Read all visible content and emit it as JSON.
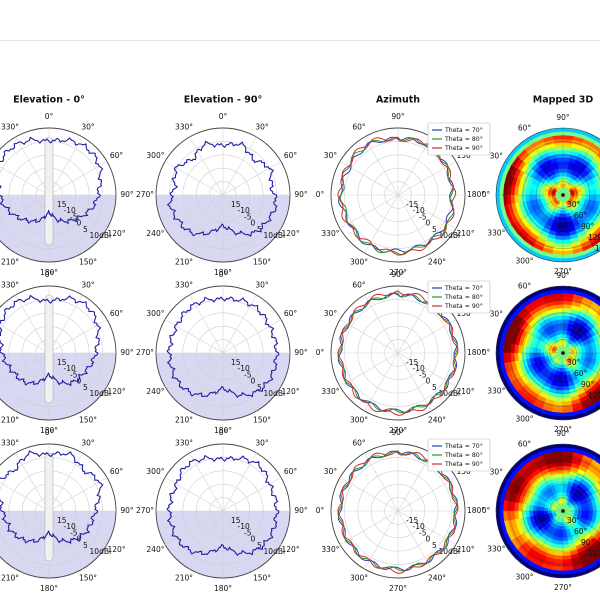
{
  "figure": {
    "column_titles": [
      "Elevation - 0°",
      "Elevation - 90°",
      "Azimuth",
      "Mapped 3D"
    ]
  },
  "colors": {
    "pattern_line": "#1f1fa3",
    "lower_half_shade": "#d8d8f3",
    "theta70": "#1f3fbf",
    "theta80": "#2a9a2a",
    "theta90": "#d42a2a"
  },
  "chart_data": [
    {
      "type": "polar-line",
      "panel": "elevation-0",
      "title": "Elevation - 0°",
      "angular_ticks": [
        "0°",
        "330°",
        "300°",
        "270°",
        "240°",
        "210°",
        "180°",
        "150°",
        "120°",
        "90°",
        "60°",
        "30°"
      ],
      "radial_ticks": [
        "15",
        "-10",
        "-5",
        "0",
        "5",
        "10dBi"
      ],
      "rlim": [
        -20,
        10
      ],
      "rows": [
        {
          "angles": [
            0,
            20,
            40,
            60,
            80,
            100,
            120,
            140,
            160,
            180,
            200,
            220,
            240,
            260,
            280,
            300,
            320,
            340
          ],
          "gain": [
            4,
            6,
            7,
            6,
            3,
            1,
            -2,
            -5,
            -8,
            -12,
            -8,
            -5,
            -2,
            1,
            3,
            6,
            7,
            6
          ]
        },
        {
          "angles": [
            0,
            20,
            40,
            60,
            80,
            100,
            120,
            140,
            160,
            180,
            200,
            220,
            240,
            260,
            280,
            300,
            320,
            340
          ],
          "gain": [
            3,
            6,
            7,
            5,
            2,
            0,
            -2,
            -3,
            -6,
            -10,
            -6,
            -3,
            -2,
            0,
            2,
            5,
            7,
            6
          ]
        },
        {
          "angles": [
            0,
            20,
            40,
            60,
            80,
            100,
            120,
            140,
            160,
            180,
            200,
            220,
            240,
            260,
            280,
            300,
            320,
            340
          ],
          "gain": [
            5,
            7,
            4,
            6,
            2,
            0,
            -1,
            -3,
            -6,
            -10,
            -6,
            -3,
            -1,
            0,
            2,
            6,
            4,
            7
          ]
        }
      ]
    },
    {
      "type": "polar-line",
      "panel": "elevation-90",
      "title": "Elevation - 90°",
      "angular_ticks": [
        "0°",
        "330°",
        "300°",
        "270°",
        "240°",
        "210°",
        "180°",
        "150°",
        "120°",
        "90°",
        "60°",
        "30°"
      ],
      "radial_ticks": [
        "15",
        "-10",
        "-5",
        "0",
        "5",
        "10dBi"
      ],
      "rlim": [
        -20,
        10
      ],
      "rows": [
        {
          "angles": [
            0,
            20,
            40,
            60,
            80,
            100,
            120,
            140,
            160,
            180,
            200,
            220,
            240,
            260,
            280,
            300,
            320,
            340
          ],
          "gain": [
            2,
            4,
            1,
            4,
            2,
            4,
            3,
            2,
            -2,
            -6,
            -2,
            2,
            3,
            4,
            2,
            4,
            1,
            4
          ]
        },
        {
          "angles": [
            0,
            20,
            40,
            60,
            80,
            100,
            120,
            140,
            160,
            180,
            200,
            220,
            240,
            260,
            280,
            300,
            320,
            340
          ],
          "gain": [
            4,
            5,
            5,
            4,
            4,
            4,
            4,
            3,
            0,
            -4,
            0,
            3,
            4,
            4,
            4,
            4,
            5,
            5
          ]
        },
        {
          "angles": [
            0,
            20,
            40,
            60,
            80,
            100,
            120,
            140,
            160,
            180,
            200,
            220,
            240,
            260,
            280,
            300,
            320,
            340
          ],
          "gain": [
            3,
            5,
            6,
            4,
            4,
            4,
            4,
            3,
            0,
            -4,
            0,
            3,
            4,
            4,
            4,
            4,
            6,
            5
          ]
        }
      ]
    },
    {
      "type": "polar-line",
      "panel": "azimuth",
      "title": "Azimuth",
      "angular_ticks": [
        "90°",
        "60°",
        "30°",
        "0°",
        "330°",
        "300°",
        "270°",
        "240°",
        "210°",
        "180°",
        "150°",
        "120°"
      ],
      "radial_ticks": [
        "-15",
        "-10",
        "-5",
        "0",
        "5",
        "10dBi"
      ],
      "rlim": [
        -20,
        10
      ],
      "legend": [
        "Theta = 70°",
        "Theta = 80°",
        "Theta = 90°"
      ],
      "legend_position": "top-right",
      "rows": [
        {
          "series": [
            {
              "name": "Theta = 70°",
              "gain": [
                5,
                6,
                5,
                6,
                5,
                6,
                5,
                5,
                5,
                4,
                5,
                6
              ]
            },
            {
              "name": "Theta = 80°",
              "gain": [
                5,
                6,
                6,
                5,
                5,
                6,
                6,
                5,
                6,
                4,
                5,
                6
              ]
            },
            {
              "name": "Theta = 90°",
              "gain": [
                5,
                7,
                6,
                6,
                6,
                5,
                6,
                6,
                6,
                5,
                5,
                6
              ]
            }
          ]
        },
        {
          "series": [
            {
              "name": "Theta = 70°",
              "gain": [
                6,
                6,
                6,
                6,
                6,
                6,
                6,
                6,
                6,
                6,
                6,
                6
              ]
            },
            {
              "name": "Theta = 80°",
              "gain": [
                6,
                6,
                6,
                6,
                6,
                6,
                6,
                6,
                6,
                6,
                6,
                6
              ]
            },
            {
              "name": "Theta = 90°",
              "gain": [
                7,
                7,
                6,
                6,
                6,
                7,
                7,
                7,
                6,
                6,
                6,
                7
              ]
            }
          ]
        },
        {
          "series": [
            {
              "name": "Theta = 70°",
              "gain": [
                6,
                6,
                6,
                6,
                6,
                6,
                6,
                6,
                6,
                6,
                6,
                6
              ]
            },
            {
              "name": "Theta = 80°",
              "gain": [
                6,
                6,
                6,
                6,
                6,
                6,
                6,
                6,
                6,
                6,
                6,
                6
              ]
            },
            {
              "name": "Theta = 90°",
              "gain": [
                6,
                7,
                6,
                6,
                6,
                6,
                7,
                6,
                6,
                6,
                6,
                7
              ]
            }
          ]
        }
      ]
    },
    {
      "type": "heatmap",
      "panel": "mapped-3d",
      "title": "Mapped 3D",
      "angular_ticks": [
        "90°",
        "60°",
        "30°",
        "0°",
        "330°",
        "300°",
        "270°",
        "240°",
        "210°",
        "180°",
        "150°",
        "120°"
      ],
      "radial_ticks": [
        "30°",
        "60°",
        "90°",
        "120°",
        "150°"
      ],
      "rlim": [
        0,
        180
      ],
      "colormap": "jet"
    }
  ]
}
